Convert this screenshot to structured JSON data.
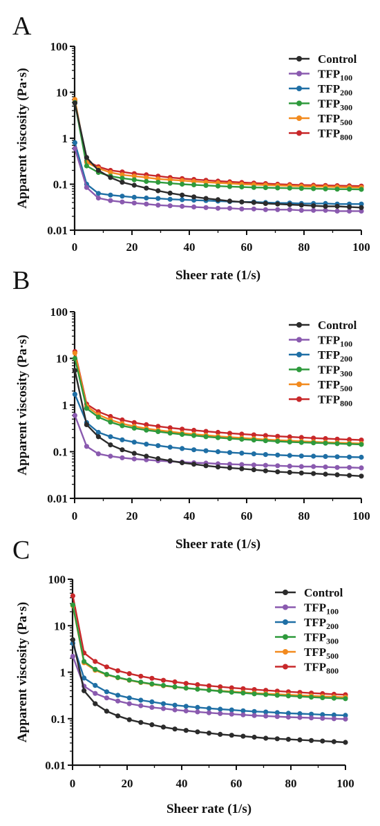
{
  "series_colors": {
    "Control": "#2b2b2b",
    "TFP100": "#8a5aaf",
    "TFP200": "#1f6fa5",
    "TFP300": "#2e9a3c",
    "TFP500": "#f28a1e",
    "TFP800": "#c8282a"
  },
  "chart_data": [
    {
      "panel": "A",
      "type": "line",
      "xlabel": "Sheer rate (1/s)",
      "ylabel": "Apparent viscosity (Pa·s)",
      "yscale": "log",
      "xlim": [
        0,
        100
      ],
      "ylim": [
        0.01,
        100
      ],
      "xticks": [
        "0",
        "20",
        "40",
        "60",
        "80",
        "100"
      ],
      "yticks": [
        "0.01",
        "0.1",
        "1",
        "10",
        "100"
      ],
      "legend_position": "top-right",
      "x": [
        0.1,
        4.2,
        8.3,
        12.5,
        16.6,
        20.8,
        25,
        29.1,
        33.3,
        37.5,
        41.6,
        45.8,
        50,
        54.1,
        58.3,
        62.5,
        66.6,
        70.8,
        75,
        79.1,
        83.3,
        87.5,
        91.6,
        95.8,
        100
      ],
      "series": [
        {
          "name": "Control",
          "sub": "",
          "values": [
            5.8,
            0.38,
            0.2,
            0.14,
            0.11,
            0.095,
            0.082,
            0.072,
            0.064,
            0.058,
            0.053,
            0.049,
            0.046,
            0.043,
            0.041,
            0.04,
            0.038,
            0.037,
            0.036,
            0.035,
            0.034,
            0.033,
            0.033,
            0.032,
            0.031
          ]
        },
        {
          "name": "TFP",
          "sub": "100",
          "values": [
            0.6,
            0.085,
            0.05,
            0.044,
            0.041,
            0.039,
            0.037,
            0.035,
            0.034,
            0.033,
            0.032,
            0.031,
            0.03,
            0.03,
            0.029,
            0.029,
            0.028,
            0.028,
            0.028,
            0.027,
            0.027,
            0.027,
            0.026,
            0.026,
            0.026
          ]
        },
        {
          "name": "TFP",
          "sub": "200",
          "values": [
            0.8,
            0.1,
            0.063,
            0.058,
            0.055,
            0.052,
            0.05,
            0.049,
            0.047,
            0.046,
            0.045,
            0.044,
            0.043,
            0.042,
            0.041,
            0.041,
            0.04,
            0.039,
            0.039,
            0.038,
            0.038,
            0.038,
            0.037,
            0.037,
            0.037
          ]
        },
        {
          "name": "TFP",
          "sub": "300",
          "values": [
            6.0,
            0.25,
            0.18,
            0.15,
            0.135,
            0.125,
            0.115,
            0.11,
            0.105,
            0.1,
            0.097,
            0.094,
            0.091,
            0.089,
            0.087,
            0.085,
            0.084,
            0.083,
            0.082,
            0.081,
            0.08,
            0.079,
            0.078,
            0.078,
            0.077
          ]
        },
        {
          "name": "TFP",
          "sub": "500",
          "values": [
            7.0,
            0.3,
            0.22,
            0.18,
            0.16,
            0.15,
            0.14,
            0.13,
            0.125,
            0.12,
            0.115,
            0.11,
            0.107,
            0.104,
            0.1,
            0.098,
            0.096,
            0.094,
            0.092,
            0.09,
            0.089,
            0.088,
            0.087,
            0.086,
            0.085
          ]
        },
        {
          "name": "TFP",
          "sub": "800",
          "values": [
            6.5,
            0.32,
            0.24,
            0.2,
            0.185,
            0.17,
            0.16,
            0.15,
            0.14,
            0.133,
            0.127,
            0.122,
            0.117,
            0.113,
            0.109,
            0.106,
            0.103,
            0.1,
            0.098,
            0.096,
            0.095,
            0.094,
            0.093,
            0.092,
            0.091
          ]
        }
      ]
    },
    {
      "panel": "B",
      "type": "line",
      "xlabel": "Sheer rate (1/s)",
      "ylabel": "Apparent viscosity (Pa·s)",
      "yscale": "log",
      "xlim": [
        0,
        100
      ],
      "ylim": [
        0.01,
        100
      ],
      "xticks": [
        "0",
        "20",
        "40",
        "60",
        "80",
        "100"
      ],
      "yticks": [
        "0.01",
        "0.1",
        "1",
        "10",
        "100"
      ],
      "legend_position": "top-right",
      "x": [
        0.1,
        4.2,
        8.3,
        12.5,
        16.6,
        20.8,
        25,
        29.1,
        33.3,
        37.5,
        41.6,
        45.8,
        50,
        54.1,
        58.3,
        62.5,
        66.6,
        70.8,
        75,
        79.1,
        83.3,
        87.5,
        91.6,
        95.8,
        100
      ],
      "series": [
        {
          "name": "Control",
          "sub": "",
          "values": [
            5.5,
            0.38,
            0.21,
            0.14,
            0.11,
            0.092,
            0.08,
            0.071,
            0.064,
            0.058,
            0.054,
            0.05,
            0.047,
            0.045,
            0.043,
            0.041,
            0.039,
            0.037,
            0.036,
            0.035,
            0.034,
            0.033,
            0.032,
            0.031,
            0.03
          ]
        },
        {
          "name": "TFP",
          "sub": "100",
          "values": [
            0.6,
            0.13,
            0.09,
            0.08,
            0.074,
            0.07,
            0.067,
            0.064,
            0.062,
            0.06,
            0.058,
            0.057,
            0.055,
            0.054,
            0.053,
            0.052,
            0.051,
            0.05,
            0.049,
            0.048,
            0.048,
            0.047,
            0.046,
            0.046,
            0.045
          ]
        },
        {
          "name": "TFP",
          "sub": "200",
          "values": [
            1.7,
            0.42,
            0.26,
            0.21,
            0.18,
            0.16,
            0.145,
            0.135,
            0.125,
            0.117,
            0.11,
            0.105,
            0.1,
            0.096,
            0.093,
            0.09,
            0.087,
            0.085,
            0.083,
            0.081,
            0.08,
            0.079,
            0.078,
            0.077,
            0.076
          ]
        },
        {
          "name": "TFP",
          "sub": "300",
          "values": [
            10,
            0.85,
            0.55,
            0.43,
            0.36,
            0.32,
            0.29,
            0.27,
            0.25,
            0.235,
            0.222,
            0.21,
            0.2,
            0.192,
            0.185,
            0.178,
            0.172,
            0.167,
            0.162,
            0.158,
            0.155,
            0.152,
            0.149,
            0.146,
            0.143
          ]
        },
        {
          "name": "TFP",
          "sub": "500",
          "values": [
            13,
            0.95,
            0.62,
            0.48,
            0.4,
            0.35,
            0.315,
            0.29,
            0.27,
            0.25,
            0.237,
            0.225,
            0.214,
            0.205,
            0.197,
            0.19,
            0.183,
            0.177,
            0.172,
            0.167,
            0.163,
            0.159,
            0.156,
            0.153,
            0.15
          ]
        },
        {
          "name": "TFP",
          "sub": "800",
          "values": [
            14,
            1.05,
            0.72,
            0.57,
            0.48,
            0.42,
            0.38,
            0.35,
            0.325,
            0.305,
            0.288,
            0.273,
            0.26,
            0.249,
            0.239,
            0.23,
            0.222,
            0.214,
            0.208,
            0.202,
            0.196,
            0.191,
            0.186,
            0.182,
            0.178
          ]
        }
      ]
    },
    {
      "panel": "C",
      "type": "line",
      "xlabel": "Sheer rate (1/s)",
      "ylabel": "Apparent viscosity (Pa·s)",
      "yscale": "log",
      "xlim": [
        0,
        100
      ],
      "ylim": [
        0.01,
        100
      ],
      "xticks": [
        "0",
        "20",
        "40",
        "60",
        "80",
        "100"
      ],
      "yticks": [
        "0.01",
        "0.1",
        "1",
        "10",
        "100"
      ],
      "legend_position": "top-right",
      "x": [
        0.1,
        4.2,
        8.3,
        12.5,
        16.6,
        20.8,
        25,
        29.1,
        33.3,
        37.5,
        41.6,
        45.8,
        50,
        54.1,
        58.3,
        62.5,
        66.6,
        70.8,
        75,
        79.1,
        83.3,
        87.5,
        91.6,
        95.8,
        100
      ],
      "series": [
        {
          "name": "Control",
          "sub": "",
          "values": [
            5.0,
            0.4,
            0.21,
            0.145,
            0.115,
            0.095,
            0.083,
            0.074,
            0.066,
            0.06,
            0.056,
            0.052,
            0.049,
            0.046,
            0.044,
            0.042,
            0.04,
            0.038,
            0.037,
            0.036,
            0.035,
            0.034,
            0.033,
            0.032,
            0.031
          ]
        },
        {
          "name": "TFP",
          "sub": "100",
          "values": [
            2.2,
            0.5,
            0.35,
            0.28,
            0.24,
            0.21,
            0.19,
            0.175,
            0.165,
            0.155,
            0.147,
            0.14,
            0.134,
            0.129,
            0.125,
            0.121,
            0.117,
            0.114,
            0.111,
            0.108,
            0.106,
            0.104,
            0.102,
            0.1,
            0.098
          ]
        },
        {
          "name": "TFP",
          "sub": "200",
          "values": [
            4.2,
            0.75,
            0.52,
            0.38,
            0.32,
            0.28,
            0.25,
            0.23,
            0.21,
            0.195,
            0.185,
            0.175,
            0.167,
            0.16,
            0.154,
            0.148,
            0.143,
            0.139,
            0.135,
            0.131,
            0.128,
            0.125,
            0.122,
            0.12,
            0.118
          ]
        },
        {
          "name": "TFP",
          "sub": "300",
          "values": [
            28,
            1.7,
            1.15,
            0.9,
            0.77,
            0.68,
            0.61,
            0.56,
            0.52,
            0.485,
            0.455,
            0.43,
            0.41,
            0.39,
            0.372,
            0.357,
            0.343,
            0.331,
            0.319,
            0.309,
            0.3,
            0.291,
            0.283,
            0.276,
            0.269
          ]
        },
        {
          "name": "TFP",
          "sub": "500",
          "values": [
            27,
            1.6,
            1.1,
            0.88,
            0.76,
            0.67,
            0.6,
            0.55,
            0.51,
            0.48,
            0.455,
            0.433,
            0.414,
            0.397,
            0.382,
            0.368,
            0.356,
            0.345,
            0.335,
            0.326,
            0.318,
            0.31,
            0.303,
            0.296,
            0.29
          ]
        },
        {
          "name": "TFP",
          "sub": "800",
          "values": [
            44,
            2.6,
            1.7,
            1.3,
            1.08,
            0.93,
            0.82,
            0.74,
            0.67,
            0.62,
            0.575,
            0.54,
            0.51,
            0.485,
            0.462,
            0.442,
            0.424,
            0.408,
            0.393,
            0.38,
            0.368,
            0.356,
            0.346,
            0.336,
            0.327
          ]
        }
      ]
    }
  ]
}
